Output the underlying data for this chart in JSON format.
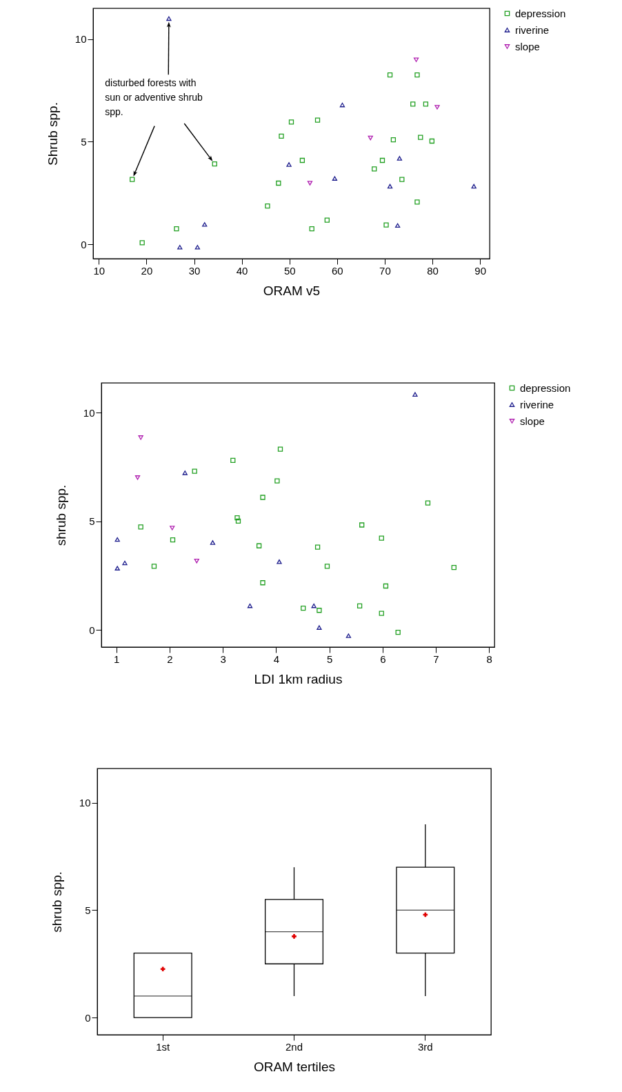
{
  "chart_data": [
    {
      "type": "scatter",
      "xlabel": "ORAM v5",
      "ylabel": "Shrub spp.",
      "xlim": [
        8.8,
        92
      ],
      "ylim": [
        -0.7,
        11.5
      ],
      "xticks": [
        10,
        20,
        30,
        40,
        50,
        60,
        70,
        80,
        90
      ],
      "yticks": [
        0,
        5,
        10
      ],
      "legend": "top right",
      "annotations": [
        "disturbed forests with sun or adventive shrub spp."
      ],
      "series": [
        {
          "name": "depression",
          "color": "#22a022",
          "marker": "square",
          "x": [
            17.0,
            34.3,
            19.1,
            26.3,
            45.4,
            47.7,
            48.3,
            50.4,
            52.7,
            55.9,
            54.7,
            57.9,
            71.1,
            76.8,
            75.9,
            78.6,
            71.8,
            77.5,
            79.9,
            69.5,
            67.8,
            73.6,
            76.8,
            70.3
          ],
          "values": [
            3.16,
            3.92,
            0.08,
            0.76,
            1.87,
            2.98,
            5.27,
            5.96,
            4.09,
            6.05,
            0.76,
            1.18,
            8.25,
            8.25,
            6.83,
            6.83,
            5.09,
            5.21,
            5.03,
            4.09,
            3.67,
            3.16,
            2.06,
            0.94
          ]
        },
        {
          "name": "riverine",
          "color": "#1c1c8c",
          "marker": "triangle",
          "x": [
            24.7,
            61.1,
            49.9,
            59.5,
            73.1,
            71.1,
            88.7,
            32.2,
            27.0,
            30.7,
            72.7
          ],
          "values": [
            11.0,
            6.79,
            3.89,
            3.21,
            4.19,
            2.83,
            2.83,
            0.97,
            -0.14,
            -0.14,
            0.92
          ]
        },
        {
          "name": "slope",
          "color": "#b020b0",
          "marker": "triangle-down",
          "x": [
            76.6,
            81.0,
            67.0,
            54.3
          ],
          "values": [
            8.99,
            6.68,
            5.18,
            2.98
          ]
        }
      ]
    },
    {
      "type": "scatter",
      "xlabel": "LDI 1km radius",
      "ylabel": "shrub spp.",
      "xlim": [
        0.72,
        8.1
      ],
      "ylim": [
        -0.79,
        11.37
      ],
      "xticks": [
        1,
        2,
        3,
        4,
        5,
        6,
        7,
        8
      ],
      "yticks": [
        0,
        5,
        10
      ],
      "legend": "top right",
      "series": [
        {
          "name": "depression",
          "color": "#22a022",
          "marker": "square",
          "x": [
            1.46,
            1.71,
            2.06,
            2.47,
            3.19,
            3.27,
            3.29,
            3.75,
            3.68,
            3.75,
            4.02,
            4.08,
            4.78,
            4.96,
            4.51,
            4.81,
            5.61,
            5.57,
            5.98,
            6.06,
            5.98,
            6.29,
            6.85,
            7.34
          ],
          "values": [
            4.74,
            2.93,
            4.14,
            7.3,
            7.8,
            5.16,
            5.01,
            6.1,
            3.87,
            2.17,
            6.86,
            8.32,
            3.81,
            2.93,
            1.0,
            0.9,
            4.83,
            1.1,
            4.22,
            2.02,
            0.76,
            -0.11,
            5.84,
            2.87
          ]
        },
        {
          "name": "riverine",
          "color": "#1c1c8c",
          "marker": "triangle",
          "x": [
            6.61,
            2.29,
            1.02,
            2.81,
            1.16,
            1.02,
            4.06,
            3.51,
            4.71,
            4.81,
            5.36
          ],
          "values": [
            10.84,
            7.23,
            4.16,
            4.02,
            3.08,
            2.84,
            3.14,
            1.11,
            1.11,
            0.11,
            -0.27
          ]
        },
        {
          "name": "slope",
          "color": "#b020b0",
          "marker": "triangle-down",
          "x": [
            1.46,
            1.4,
            2.05,
            2.51
          ],
          "values": [
            8.85,
            7.01,
            4.69,
            3.17
          ]
        }
      ]
    },
    {
      "type": "box",
      "xlabel": "ORAM tertiles",
      "ylabel": "shrub spp.",
      "ylim": [
        -0.8,
        11.6
      ],
      "yticks": [
        0,
        5,
        10
      ],
      "categories": [
        "1st",
        "2nd",
        "3rd"
      ],
      "series": [
        {
          "type": "box",
          "color": "#000000",
          "boxes": [
            {
              "low": 0,
              "q1": 0,
              "median": 1,
              "q3": 3,
              "high": 3
            },
            {
              "low": 1,
              "q1": 2.5,
              "median": 4,
              "q3": 5.5,
              "high": 7
            },
            {
              "low": 1,
              "q1": 3,
              "median": 5,
              "q3": 7,
              "high": 9
            }
          ]
        },
        {
          "type": "scatter",
          "color": "#e00000",
          "marker": "cross",
          "x": [
            "1st",
            "2nd",
            "3rd"
          ],
          "values": [
            2.26,
            3.78,
            4.79
          ]
        }
      ]
    }
  ]
}
